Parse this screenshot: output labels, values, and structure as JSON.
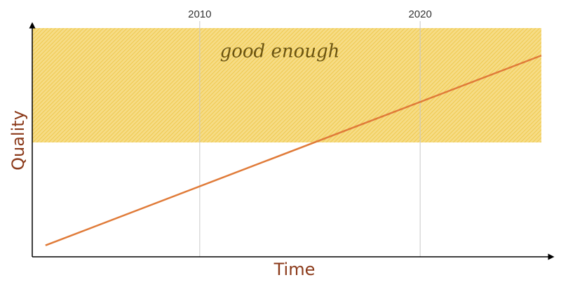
{
  "chart_data": {
    "type": "line",
    "x_label": "Time",
    "y_label": "Quality",
    "x": [
      2003,
      2025.5
    ],
    "series": [
      {
        "name": "quality",
        "color": "#e07b39",
        "values": [
          5,
          88
        ]
      }
    ],
    "xlim": [
      2002.4,
      2025.5
    ],
    "xticks": [
      2010,
      2020
    ],
    "ylim": [
      0,
      100
    ],
    "band": {
      "label": "good enough",
      "range": [
        50,
        100
      ],
      "color": "#f3cf5c"
    },
    "grid": true
  }
}
